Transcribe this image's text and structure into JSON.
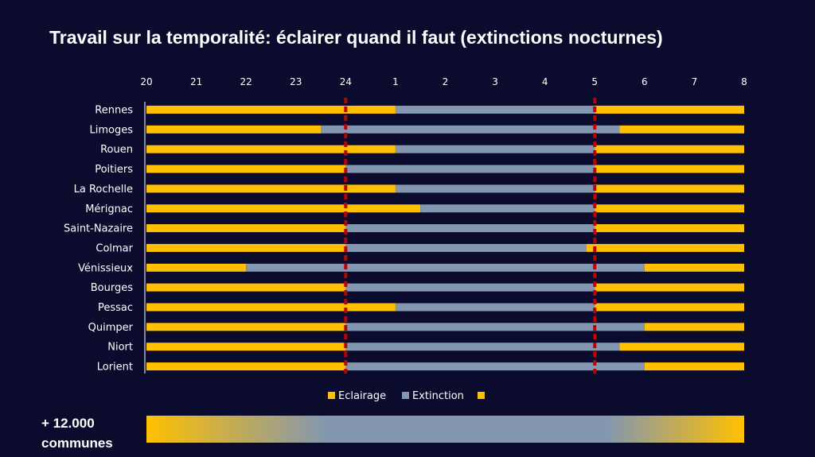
{
  "page": {
    "title": "Travail sur la temporalité: éclairer quand il faut (extinctions nocturnes)"
  },
  "footer": {
    "line1": "+ 12.000",
    "line2": "communes"
  },
  "colors": {
    "background": "#0b0b2e",
    "lighting": "#ffc000",
    "off": "#8497b0",
    "marker": "#c00000"
  },
  "chart_data": {
    "type": "bar",
    "orientation": "horizontal-stacked",
    "x_ticks": [
      "20",
      "21",
      "22",
      "23",
      "24",
      "1",
      "2",
      "3",
      "4",
      "5",
      "6",
      "7",
      "8"
    ],
    "x_unit": "hour (20h to 8h)",
    "xlim": [
      20,
      32
    ],
    "markers": [
      24,
      29
    ],
    "legend": {
      "position": "bottom",
      "entries": [
        "Eclairage",
        "Extinction",
        ""
      ]
    },
    "series": [
      {
        "name": "Eclairage",
        "color": "#ffc000"
      },
      {
        "name": "Extinction",
        "color": "#8497b0"
      }
    ],
    "rows": [
      {
        "city": "Rennes",
        "off_start": 25,
        "off_end": 29
      },
      {
        "city": "Limoges",
        "off_start": 23.5,
        "off_end": 29.5
      },
      {
        "city": "Rouen",
        "off_start": 25,
        "off_end": 29
      },
      {
        "city": "Poitiers",
        "off_start": 24,
        "off_end": 29
      },
      {
        "city": "La Rochelle",
        "off_start": 25,
        "off_end": 29
      },
      {
        "city": "Mérignac",
        "off_start": 25.5,
        "off_end": 29
      },
      {
        "city": "Saint-Nazaire",
        "off_start": 24,
        "off_end": 29
      },
      {
        "city": "Colmar",
        "off_start": 24,
        "off_end": 28.83
      },
      {
        "city": "Vénissieux",
        "off_start": 22,
        "off_end": 30
      },
      {
        "city": "Bourges",
        "off_start": 24,
        "off_end": 29
      },
      {
        "city": "Pessac",
        "off_start": 25,
        "off_end": 29
      },
      {
        "city": "Quimper",
        "off_start": 24,
        "off_end": 30
      },
      {
        "city": "Niort",
        "off_start": 24,
        "off_end": 29.5
      },
      {
        "city": "Lorient",
        "off_start": 24,
        "off_end": 30
      }
    ]
  }
}
